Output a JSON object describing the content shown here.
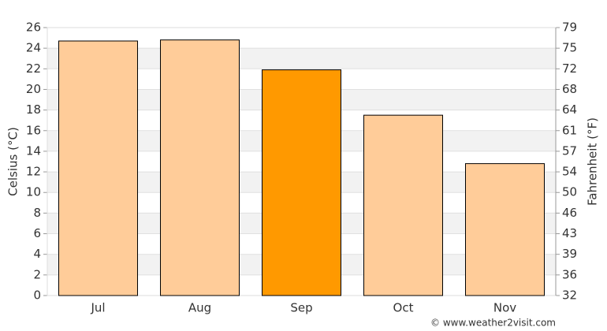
{
  "chart_data": {
    "type": "bar",
    "categories": [
      "Jul",
      "Aug",
      "Sep",
      "Oct",
      "Nov"
    ],
    "values": [
      24.7,
      24.8,
      21.9,
      17.5,
      12.8
    ],
    "colors": [
      "#ffcc99",
      "#ffcc99",
      "#ff9900",
      "#ffcc99",
      "#ffcc99"
    ],
    "y_label": "Celsius (°C)",
    "y2_label": "Fahrenheit (°F)",
    "ylim": [
      0,
      26
    ],
    "yticks": [
      0,
      2,
      4,
      6,
      8,
      10,
      12,
      14,
      16,
      18,
      20,
      22,
      24,
      26
    ],
    "y2lim": [
      32,
      78.8
    ],
    "y2ticks": [
      32,
      {
        "value": 35.6,
        "label": "36"
      },
      {
        "value": 39.2,
        "label": "39"
      },
      {
        "value": 42.8,
        "label": "43"
      },
      {
        "value": 46.4,
        "label": "46"
      },
      50,
      {
        "value": 53.6,
        "label": "54"
      },
      {
        "value": 57.2,
        "label": "57"
      },
      {
        "value": 60.8,
        "label": "61"
      },
      {
        "value": 64.4,
        "label": "64"
      },
      68,
      {
        "value": 71.6,
        "label": "72"
      },
      {
        "value": 75.2,
        "label": "75"
      },
      {
        "value": 78.8,
        "label": "79"
      }
    ],
    "grid": true,
    "credit": "© www.weather2visit.com"
  }
}
